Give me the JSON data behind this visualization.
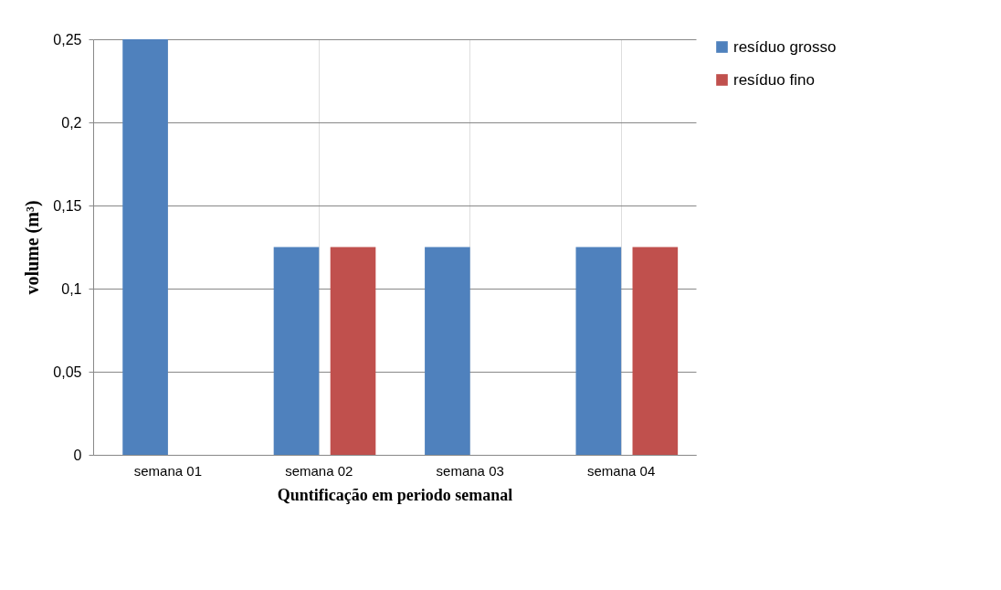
{
  "chart_data": {
    "type": "bar",
    "xlabel": "Quntificação em periodo semanal",
    "ylabel": "volume (m³)",
    "categories": [
      "semana 01",
      "semana 02",
      "semana 03",
      "semana 04"
    ],
    "series": [
      {
        "name": "resíduo grosso",
        "color": "#4f81bd",
        "values": [
          0.25,
          0.125,
          0.125,
          0.125
        ]
      },
      {
        "name": "resíduo fino",
        "color": "#c0504d",
        "values": [
          0,
          0.125,
          0,
          0.125
        ]
      }
    ],
    "ylim": [
      0,
      0.25
    ],
    "yticks": [
      {
        "value": 0,
        "label": "0"
      },
      {
        "value": 0.05,
        "label": "0,05"
      },
      {
        "value": 0.1,
        "label": "0,1"
      },
      {
        "value": 0.15,
        "label": "0,15"
      },
      {
        "value": 0.2,
        "label": "0,2"
      },
      {
        "value": 0.25,
        "label": "0,25"
      }
    ],
    "grid": true,
    "legend": "right"
  }
}
